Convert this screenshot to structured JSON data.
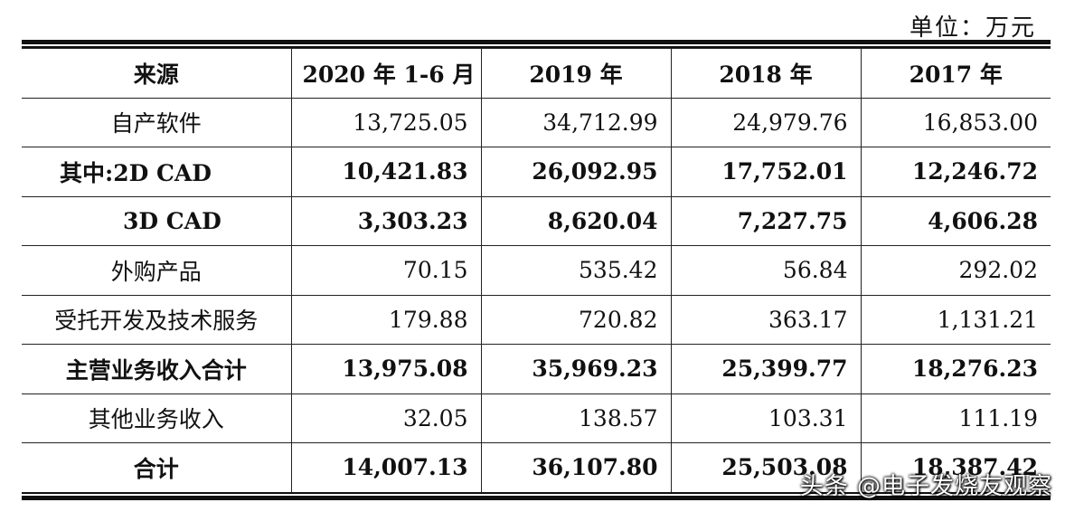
{
  "unit_label": "单位：万元",
  "table": {
    "headers": [
      "来源",
      "2020 年 1-6 月",
      "2019 年",
      "2018 年",
      "2017 年"
    ],
    "rows": [
      {
        "label": "自产软件",
        "bold": false,
        "values": [
          "13,725.05",
          "34,712.99",
          "24,979.76",
          "16,853.00"
        ]
      },
      {
        "label": "其中:2D CAD",
        "bold": true,
        "values": [
          "10,421.83",
          "26,092.95",
          "17,752.01",
          "12,246.72"
        ]
      },
      {
        "label": "3D CAD",
        "bold": true,
        "values": [
          "3,303.23",
          "8,620.04",
          "7,227.75",
          "4,606.28"
        ]
      },
      {
        "label": "外购产品",
        "bold": false,
        "values": [
          "70.15",
          "535.42",
          "56.84",
          "292.02"
        ]
      },
      {
        "label": "受托开发及技术服务",
        "bold": false,
        "values": [
          "179.88",
          "720.82",
          "363.17",
          "1,131.21"
        ]
      },
      {
        "label": "主营业务收入合计",
        "bold": true,
        "values": [
          "13,975.08",
          "35,969.23",
          "25,399.77",
          "18,276.23"
        ]
      },
      {
        "label": "其他业务收入",
        "bold": false,
        "values": [
          "32.05",
          "138.57",
          "103.31",
          "111.19"
        ]
      },
      {
        "label": "合计",
        "bold": true,
        "values": [
          "14,007.13",
          "36,107.80",
          "25,503.08",
          "18,387.42"
        ]
      }
    ]
  },
  "watermark": "头条 @电子发烧友观察"
}
